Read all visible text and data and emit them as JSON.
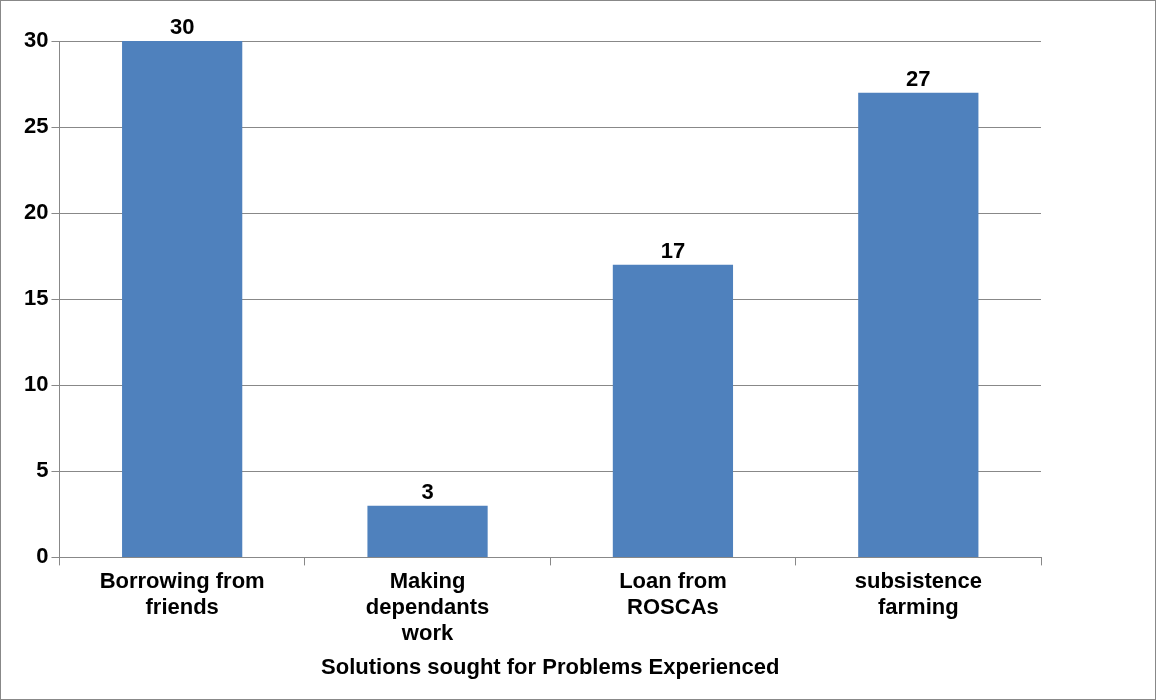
{
  "chart_data": {
    "type": "bar",
    "xlabel": "Solutions sought for Problems Experienced",
    "categories": [
      "Borrowing from friends",
      "Making dependants work",
      "Loan from ROSCAs",
      "subsistence farming"
    ],
    "values": [
      30,
      3,
      17,
      27
    ],
    "color": "#4f81bd",
    "ylim": [
      0,
      30
    ],
    "yticks": [
      0,
      5,
      10,
      15,
      20,
      25,
      30
    ],
    "grid": "y",
    "legend": false,
    "data_labels": true
  }
}
